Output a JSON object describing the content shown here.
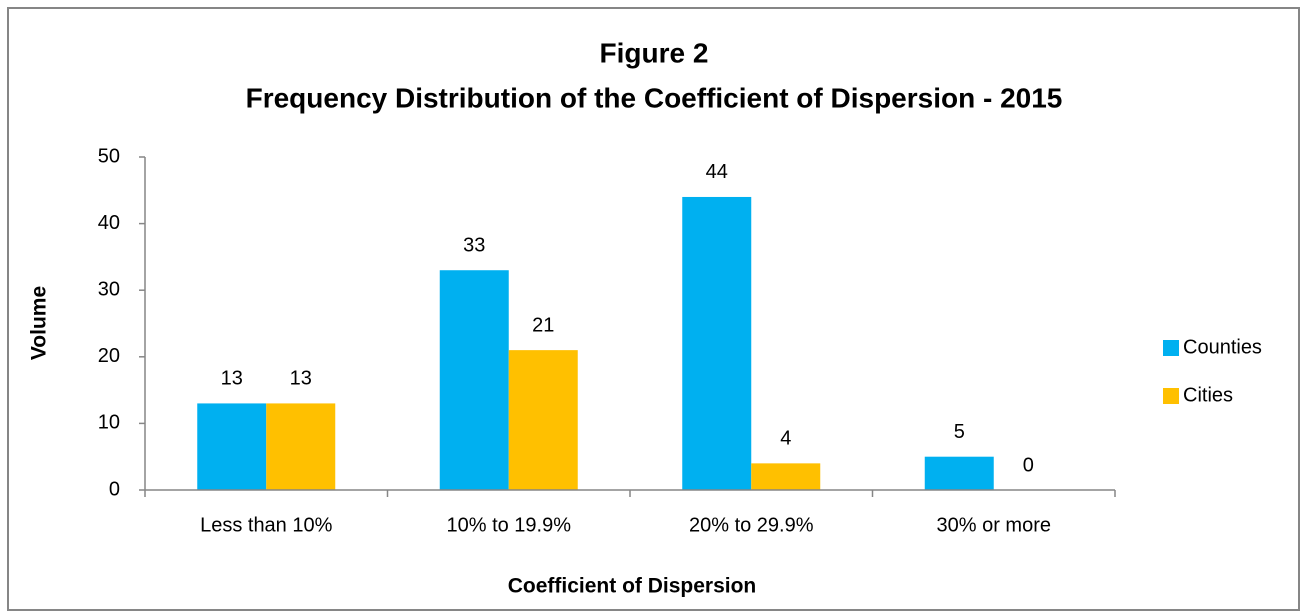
{
  "chart_data": {
    "type": "bar",
    "title": "Figure 2",
    "subtitle": "Frequency Distribution of the Coefficient of Dispersion - 2015",
    "x_label": "Coefficient of Dispersion",
    "y_label": "Volume",
    "categories": [
      "Less than 10%",
      "10% to 19.9%",
      "20% to 29.9%",
      "30% or more"
    ],
    "series": [
      {
        "name": "Counties",
        "color": "#00b0f0",
        "values": [
          13,
          33,
          44,
          5
        ]
      },
      {
        "name": "Cities",
        "color": "#ffc000",
        "values": [
          13,
          21,
          4,
          0
        ]
      }
    ],
    "ylim": [
      0,
      50
    ],
    "yticks": [
      0,
      10,
      20,
      30,
      40,
      50
    ],
    "grid": false,
    "legend": "right"
  }
}
